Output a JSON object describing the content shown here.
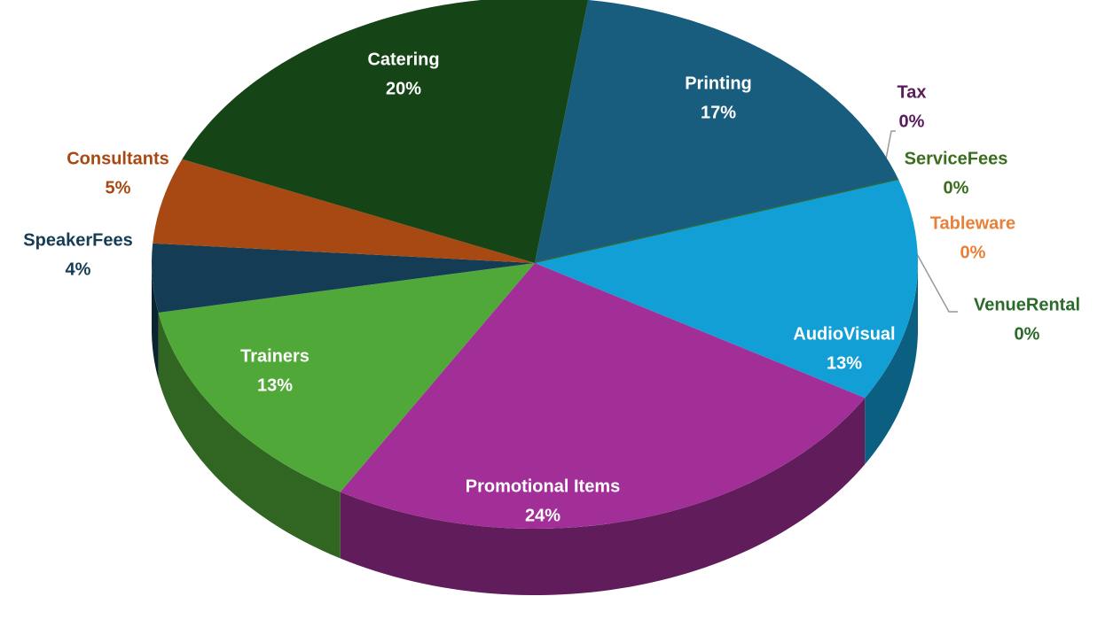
{
  "chart_data": {
    "type": "pie",
    "categories": [
      "Printing",
      "Tax",
      "ServiceFees",
      "Tableware",
      "VenueRental",
      "AudioVisual",
      "Promotional Items",
      "Trainers",
      "SpeakerFees",
      "Consultants",
      "Catering"
    ],
    "values": [
      17,
      0,
      0,
      0,
      0,
      13,
      24,
      13,
      4,
      5,
      20
    ],
    "value_labels": [
      "17%",
      "0%",
      "0%",
      "0%",
      "0%",
      "13%",
      "24%",
      "13%",
      "4%",
      "5%",
      "20%"
    ],
    "colors": [
      "#185d7e",
      "#5b1a5b",
      "#3a6e1e",
      "#e8803a",
      "#2a6a2a",
      "#129fd6",
      "#a22e98",
      "#50a838",
      "#143c54",
      "#a84812",
      "#154516"
    ],
    "label_colors": [
      "#ffffff",
      "#5b1a5b",
      "#3a6e1e",
      "#e8803a",
      "#2a6a2a",
      "#ffffff",
      "#ffffff",
      "#ffffff",
      "#143c54",
      "#a84812",
      "#ffffff"
    ]
  }
}
